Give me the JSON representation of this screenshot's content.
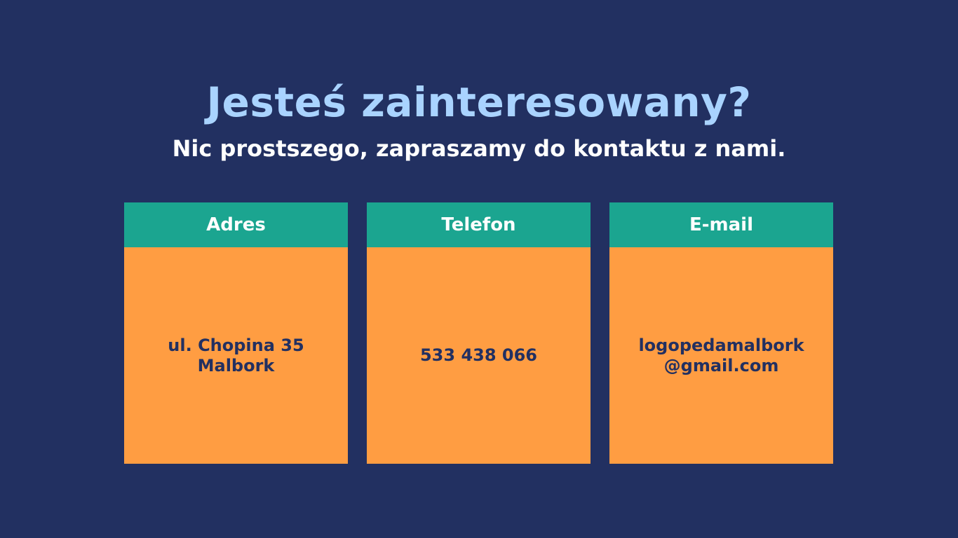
{
  "heading": {
    "title": "Jesteś zainteresowany?",
    "subtitle": "Nic prostszego, zapraszamy do kontaktu z nami."
  },
  "cards": [
    {
      "header": "Adres",
      "lines": [
        "ul. Chopina 35",
        "Malbork"
      ]
    },
    {
      "header": "Telefon",
      "lines": [
        "533 438 066"
      ]
    },
    {
      "header": "E-mail",
      "lines": [
        "logopedamalbork",
        "@gmail.com"
      ]
    }
  ],
  "colors": {
    "background": "#223061",
    "title": "#a9d3ff",
    "card_header": "#1ba590",
    "card_body": "#ff9d42",
    "card_text": "#223061"
  }
}
